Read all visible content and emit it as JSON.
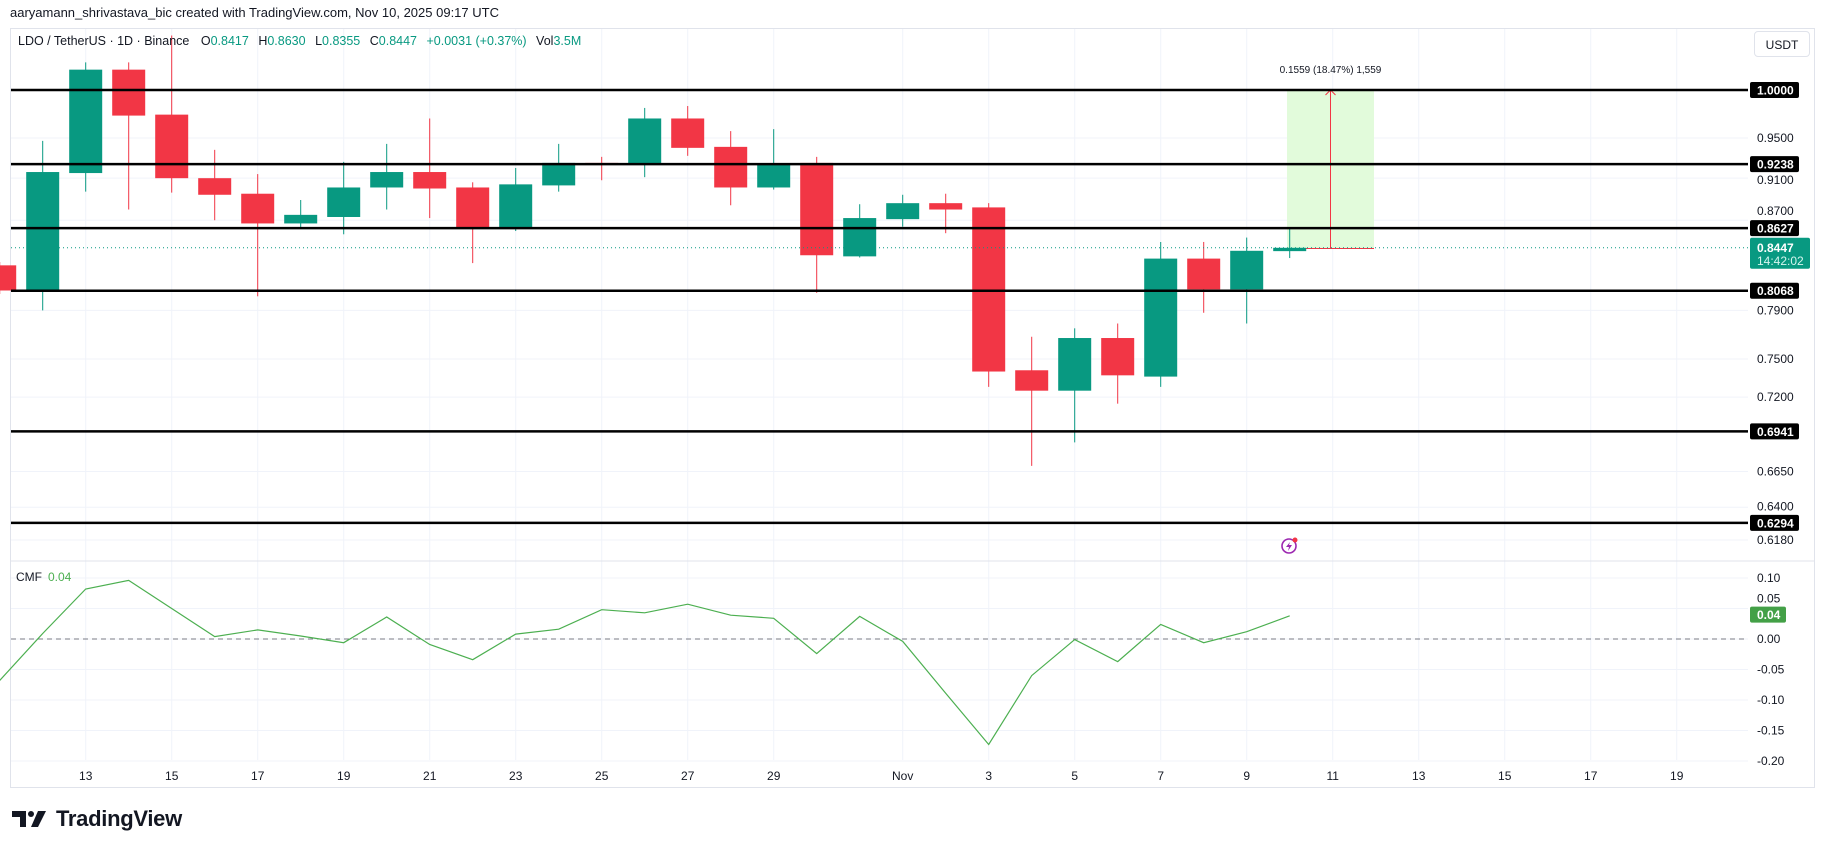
{
  "credit": "aaryamann_shrivastava_bic created with TradingView.com, Nov 10, 2025 09:17 UTC",
  "legend": {
    "symbol": "LDO / TetherUS · 1D · Binance",
    "o_label": "O",
    "o": "0.8417",
    "h_label": "H",
    "h": "0.8630",
    "l_label": "L",
    "l": "0.8355",
    "c_label": "C",
    "c": "0.8447",
    "change": "+0.0031 (+0.37%)",
    "vol_label": "Vol",
    "vol": "3.5M"
  },
  "currency_button": "USDT",
  "indicator": {
    "name": "CMF",
    "value": "0.04"
  },
  "logo_text": "TradingView",
  "colors": {
    "up": "#089981",
    "down": "#F23645",
    "cmf": "#4CAF50",
    "level": "#000000",
    "measure_fill": "#E2FBDB",
    "measure_line": "#F23645"
  },
  "chart_data": [
    {
      "type": "candlestick",
      "title": "LDO / TetherUS · 1D · Binance",
      "y_scale": "log",
      "ylim": [
        0.605,
        1.07
      ],
      "grid": true,
      "price_ticks": [
        "0.9500",
        "0.9100",
        "0.8700",
        "0.7900",
        "0.7500",
        "0.7200",
        "0.6650",
        "0.6400",
        "0.6180"
      ],
      "x_ticks": [
        {
          "date": "2025-10-13",
          "label": "13"
        },
        {
          "date": "2025-10-15",
          "label": "15"
        },
        {
          "date": "2025-10-17",
          "label": "17"
        },
        {
          "date": "2025-10-19",
          "label": "19"
        },
        {
          "date": "2025-10-21",
          "label": "21"
        },
        {
          "date": "2025-10-23",
          "label": "23"
        },
        {
          "date": "2025-10-25",
          "label": "25"
        },
        {
          "date": "2025-10-27",
          "label": "27"
        },
        {
          "date": "2025-10-29",
          "label": "29"
        },
        {
          "date": "2025-11-01",
          "label": "Nov"
        },
        {
          "date": "2025-11-03",
          "label": "3"
        },
        {
          "date": "2025-11-05",
          "label": "5"
        },
        {
          "date": "2025-11-07",
          "label": "7"
        },
        {
          "date": "2025-11-09",
          "label": "9"
        },
        {
          "date": "2025-11-11",
          "label": "11"
        },
        {
          "date": "2025-11-13",
          "label": "13"
        },
        {
          "date": "2025-11-15",
          "label": "15"
        },
        {
          "date": "2025-11-17",
          "label": "17"
        },
        {
          "date": "2025-11-19",
          "label": "19"
        }
      ],
      "candles": [
        {
          "date": "2025-10-11",
          "o": 0.829,
          "h": 0.832,
          "l": 0.804,
          "c": 0.807
        },
        {
          "date": "2025-10-12",
          "o": 0.807,
          "h": 0.947,
          "l": 0.79,
          "c": 0.916
        },
        {
          "date": "2025-10-13",
          "o": 0.915,
          "h": 1.03,
          "l": 0.897,
          "c": 1.022
        },
        {
          "date": "2025-10-14",
          "o": 1.022,
          "h": 1.03,
          "l": 0.88,
          "c": 0.973
        },
        {
          "date": "2025-10-15",
          "o": 0.974,
          "h": 1.06,
          "l": 0.896,
          "c": 0.91
        },
        {
          "date": "2025-10-16",
          "o": 0.91,
          "h": 0.938,
          "l": 0.87,
          "c": 0.894
        },
        {
          "date": "2025-10-17",
          "o": 0.895,
          "h": 0.914,
          "l": 0.802,
          "c": 0.867
        },
        {
          "date": "2025-10-18",
          "o": 0.867,
          "h": 0.889,
          "l": 0.862,
          "c": 0.875
        },
        {
          "date": "2025-10-19",
          "o": 0.873,
          "h": 0.926,
          "l": 0.857,
          "c": 0.901
        },
        {
          "date": "2025-10-20",
          "o": 0.901,
          "h": 0.944,
          "l": 0.88,
          "c": 0.916
        },
        {
          "date": "2025-10-21",
          "o": 0.916,
          "h": 0.97,
          "l": 0.872,
          "c": 0.9
        },
        {
          "date": "2025-10-22",
          "o": 0.901,
          "h": 0.906,
          "l": 0.831,
          "c": 0.863
        },
        {
          "date": "2025-10-23",
          "o": 0.863,
          "h": 0.92,
          "l": 0.86,
          "c": 0.904
        },
        {
          "date": "2025-10-24",
          "o": 0.903,
          "h": 0.944,
          "l": 0.897,
          "c": 0.925
        },
        {
          "date": "2025-10-25",
          "o": 0.925,
          "h": 0.931,
          "l": 0.908,
          "c": 0.924
        },
        {
          "date": "2025-10-26",
          "o": 0.924,
          "h": 0.981,
          "l": 0.911,
          "c": 0.97
        },
        {
          "date": "2025-10-27",
          "o": 0.97,
          "h": 0.983,
          "l": 0.932,
          "c": 0.94
        },
        {
          "date": "2025-10-28",
          "o": 0.941,
          "h": 0.957,
          "l": 0.884,
          "c": 0.901
        },
        {
          "date": "2025-10-29",
          "o": 0.901,
          "h": 0.959,
          "l": 0.899,
          "c": 0.924
        },
        {
          "date": "2025-10-30",
          "o": 0.925,
          "h": 0.931,
          "l": 0.805,
          "c": 0.838
        },
        {
          "date": "2025-10-31",
          "o": 0.837,
          "h": 0.885,
          "l": 0.836,
          "c": 0.872
        },
        {
          "date": "2025-11-01",
          "o": 0.871,
          "h": 0.894,
          "l": 0.864,
          "c": 0.886
        },
        {
          "date": "2025-11-02",
          "o": 0.886,
          "h": 0.895,
          "l": 0.858,
          "c": 0.88
        },
        {
          "date": "2025-11-03",
          "o": 0.882,
          "h": 0.886,
          "l": 0.728,
          "c": 0.74
        },
        {
          "date": "2025-11-04",
          "o": 0.741,
          "h": 0.768,
          "l": 0.669,
          "c": 0.725
        },
        {
          "date": "2025-11-05",
          "o": 0.725,
          "h": 0.775,
          "l": 0.686,
          "c": 0.767
        },
        {
          "date": "2025-11-06",
          "o": 0.767,
          "h": 0.779,
          "l": 0.715,
          "c": 0.737
        },
        {
          "date": "2025-11-07",
          "o": 0.736,
          "h": 0.85,
          "l": 0.728,
          "c": 0.835
        },
        {
          "date": "2025-11-08",
          "o": 0.835,
          "h": 0.85,
          "l": 0.788,
          "c": 0.808
        },
        {
          "date": "2025-11-09",
          "o": 0.808,
          "h": 0.854,
          "l": 0.779,
          "c": 0.842
        },
        {
          "date": "2025-11-10",
          "o": 0.8417,
          "h": 0.863,
          "l": 0.8355,
          "c": 0.8447
        }
      ],
      "levels": [
        "1.0000",
        "0.9238",
        "0.8627",
        "0.8068",
        "0.6941",
        "0.6294"
      ],
      "last_price": {
        "value": "0.8447",
        "countdown": "14:42:02"
      },
      "measure": {
        "from_date": "2025-11-10",
        "to_date": "2025-11-12",
        "from_price": 0.8441,
        "to_price": 1.0,
        "label": "0.1559 (18.47%) 1,559"
      }
    },
    {
      "type": "line",
      "title": "CMF",
      "ylim": [
        -0.2,
        0.12
      ],
      "y_ticks": [
        "0.10",
        "0.05",
        "0.00",
        "-0.05",
        "-0.10",
        "-0.15",
        "-0.20"
      ],
      "zero_line": "dashed",
      "last_value": "0.04",
      "points": [
        {
          "date": "2025-10-11",
          "v": -0.068
        },
        {
          "date": "2025-10-12",
          "v": 0.009
        },
        {
          "date": "2025-10-13",
          "v": 0.082
        },
        {
          "date": "2025-10-14",
          "v": 0.096
        },
        {
          "date": "2025-10-15",
          "v": 0.05
        },
        {
          "date": "2025-10-16",
          "v": 0.004
        },
        {
          "date": "2025-10-17",
          "v": 0.015
        },
        {
          "date": "2025-10-18",
          "v": 0.005
        },
        {
          "date": "2025-10-19",
          "v": -0.006
        },
        {
          "date": "2025-10-20",
          "v": 0.036
        },
        {
          "date": "2025-10-21",
          "v": -0.009
        },
        {
          "date": "2025-10-22",
          "v": -0.034
        },
        {
          "date": "2025-10-23",
          "v": 0.008
        },
        {
          "date": "2025-10-24",
          "v": 0.016
        },
        {
          "date": "2025-10-25",
          "v": 0.048
        },
        {
          "date": "2025-10-26",
          "v": 0.043
        },
        {
          "date": "2025-10-27",
          "v": 0.057
        },
        {
          "date": "2025-10-28",
          "v": 0.039
        },
        {
          "date": "2025-10-29",
          "v": 0.034
        },
        {
          "date": "2025-10-30",
          "v": -0.024
        },
        {
          "date": "2025-10-31",
          "v": 0.037
        },
        {
          "date": "2025-11-01",
          "v": -0.004
        },
        {
          "date": "2025-11-02",
          "v": -0.089
        },
        {
          "date": "2025-11-03",
          "v": -0.173
        },
        {
          "date": "2025-11-04",
          "v": -0.06
        },
        {
          "date": "2025-11-05",
          "v": -0.001
        },
        {
          "date": "2025-11-06",
          "v": -0.037
        },
        {
          "date": "2025-11-07",
          "v": 0.024
        },
        {
          "date": "2025-11-08",
          "v": -0.006
        },
        {
          "date": "2025-11-09",
          "v": 0.012
        },
        {
          "date": "2025-11-10",
          "v": 0.038
        }
      ]
    }
  ]
}
